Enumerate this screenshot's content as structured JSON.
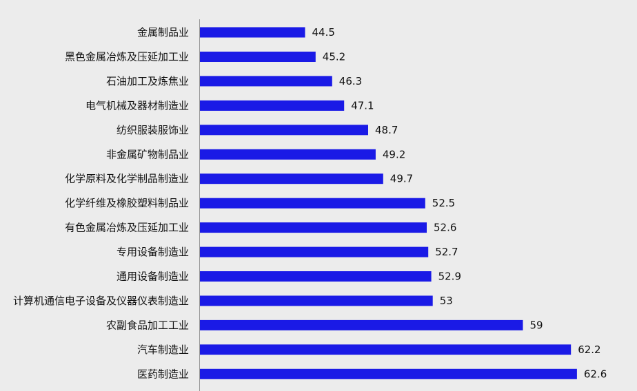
{
  "chart_data": {
    "type": "bar",
    "orientation": "horizontal",
    "categories": [
      "金属制品业",
      "黑色金属冶炼及压延加工业",
      "石油加工及炼焦业",
      "电气机械及器材制造业",
      "纺织服装服饰业",
      "非金属矿物制品业",
      "化学原料及化学制品制造业",
      "化学纤维及橡胶塑料制品业",
      "有色金属冶炼及压延加工业",
      "专用设备制造业",
      "通用设备制造业",
      "计算机通信电子设备及仪器仪表制造业",
      "农副食品加工工业",
      "汽车制造业",
      "医药制造业"
    ],
    "values": [
      44.5,
      45.2,
      46.3,
      47.1,
      48.7,
      49.2,
      49.7,
      52.5,
      52.6,
      52.7,
      52.9,
      53,
      59,
      62.2,
      62.6
    ],
    "value_labels": [
      "44.5",
      "45.2",
      "46.3",
      "47.1",
      "48.7",
      "49.2",
      "49.7",
      "52.5",
      "52.6",
      "52.7",
      "52.9",
      "53",
      "59",
      "62.2",
      "62.6"
    ],
    "title": "",
    "xlabel": "",
    "ylabel": "",
    "xlim": [
      37.5,
      63
    ],
    "grid": false,
    "legend": "none",
    "bar_color": "#1a1ae6",
    "background_color": "#ececec"
  }
}
